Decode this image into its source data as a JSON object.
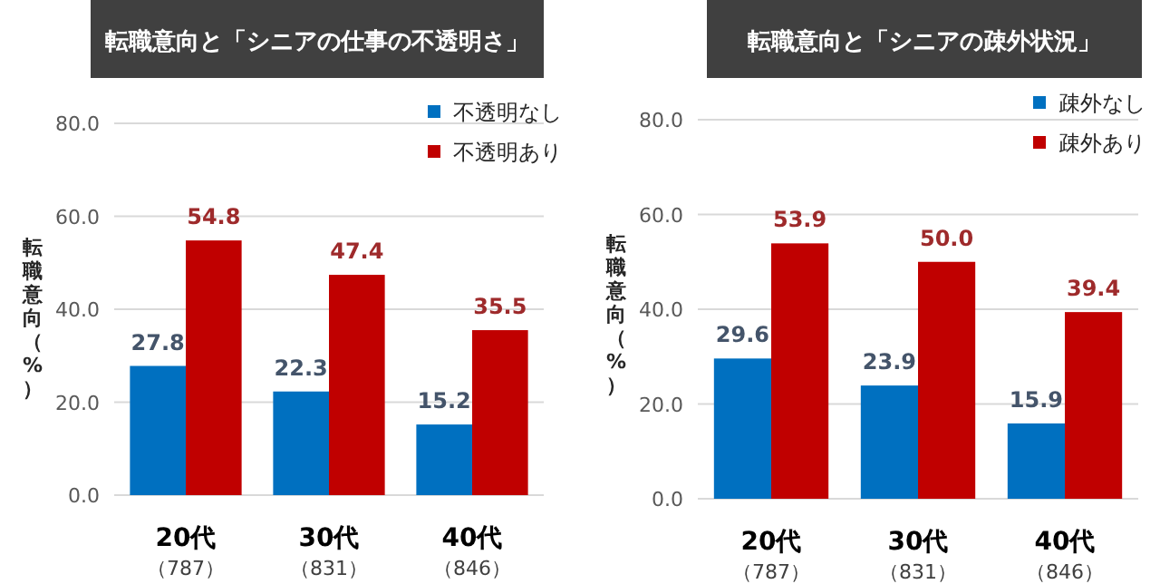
{
  "chart_data": [
    {
      "type": "bar",
      "title": "転職意向と「シニアの仕事の不透明さ」",
      "ylabel": "転職意向（%）",
      "categories": [
        "20代（787）",
        "30代（831）",
        "40代（846）"
      ],
      "series": [
        {
          "name": "不透明なし",
          "color": "#0070c0",
          "values": [
            27.8,
            22.3,
            15.2
          ],
          "value_labels": [
            "27.8",
            "22.3",
            "15.2"
          ]
        },
        {
          "name": "不透明あり",
          "color": "#c00000",
          "values": [
            54.8,
            47.4,
            35.5
          ],
          "value_labels": [
            "54.8",
            "47.4",
            "35.5"
          ]
        }
      ],
      "ylim": [
        0,
        80
      ],
      "yticks": [
        {
          "value": 0,
          "label": "0.0"
        },
        {
          "value": 20,
          "label": "20.0"
        },
        {
          "value": 40,
          "label": "40.0"
        },
        {
          "value": 60,
          "label": "60.0"
        },
        {
          "value": 80,
          "label": "80.0"
        }
      ],
      "grid": "y",
      "legend": "top right"
    },
    {
      "type": "bar",
      "title": "転職意向と「シニアの疎外状況」",
      "ylabel": "転職意向（%）",
      "categories": [
        "20代（787）",
        "30代（831）",
        "40代（846）"
      ],
      "series": [
        {
          "name": "疎外なし",
          "color": "#0070c0",
          "values": [
            29.6,
            23.9,
            15.9
          ],
          "value_labels": [
            "29.6",
            "23.9",
            "15.9"
          ]
        },
        {
          "name": "疎外あり",
          "color": "#c00000",
          "values": [
            53.9,
            50.0,
            39.4
          ],
          "value_labels": [
            "53.9",
            "50.0",
            "39.4"
          ]
        }
      ],
      "ylim": [
        0,
        80
      ],
      "yticks": [
        {
          "value": 0,
          "label": "0.0"
        },
        {
          "value": 20,
          "label": "20.0"
        },
        {
          "value": 40,
          "label": "40.0"
        },
        {
          "value": 60,
          "label": "60.0"
        },
        {
          "value": 80,
          "label": "80.0"
        }
      ],
      "grid": "y",
      "legend": "top right"
    }
  ]
}
